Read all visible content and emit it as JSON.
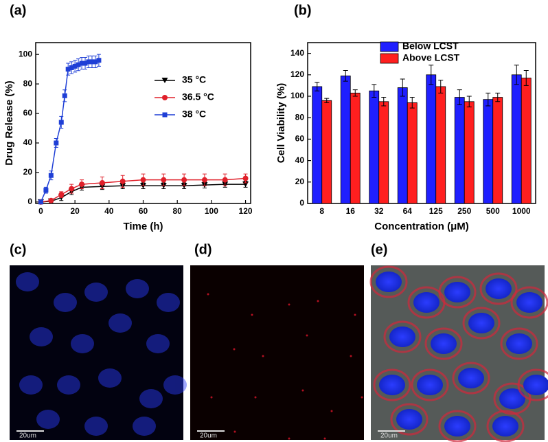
{
  "panel_labels": [
    "(a)",
    "(b)",
    "(c)",
    "(d)",
    "(e)"
  ],
  "scale_bars": [
    "20um",
    "20um",
    "20um"
  ],
  "chart_data": [
    {
      "type": "line",
      "x_label": "Time (h)",
      "y_label": "Drug Release (%)",
      "xlim": [
        -3,
        123
      ],
      "xticks": [
        0,
        20,
        40,
        60,
        80,
        100,
        120
      ],
      "ylim": [
        -1,
        108
      ],
      "yticks": [
        0,
        20,
        40,
        60,
        80,
        100
      ],
      "legend": "upper right",
      "series": [
        {
          "name": "35 °C",
          "color": "#000000",
          "marker": "triangle",
          "x": [
            0,
            6,
            12,
            18,
            24,
            36,
            48,
            60,
            72,
            84,
            96,
            108,
            120
          ],
          "values": [
            0,
            0.5,
            3,
            7,
            10,
            10.5,
            11,
            11,
            11,
            11,
            11.5,
            12,
            12
          ],
          "errors": [
            1,
            1,
            2,
            2,
            2,
            2,
            2,
            2,
            2,
            2,
            2,
            2,
            2
          ]
        },
        {
          "name": "36.5 °C",
          "color": "#e0202a",
          "marker": "circle",
          "x": [
            0,
            6,
            12,
            18,
            24,
            36,
            48,
            60,
            72,
            84,
            96,
            108,
            120
          ],
          "values": [
            0,
            1,
            5,
            9,
            12,
            13,
            14,
            15,
            15,
            15,
            15,
            15,
            16
          ],
          "errors": [
            1,
            1,
            2,
            3,
            3,
            4,
            4,
            4,
            4,
            4,
            4,
            4,
            3
          ]
        },
        {
          "name": "38 °C",
          "color": "#1f3fd6",
          "marker": "square",
          "x": [
            0,
            3,
            6,
            9,
            12,
            14,
            16,
            18,
            20,
            22,
            24,
            26,
            28,
            30,
            32,
            34
          ],
          "values": [
            0,
            8,
            18,
            40,
            54,
            72,
            90,
            91,
            92,
            93,
            94,
            94,
            95,
            95,
            95,
            96
          ],
          "errors": [
            1,
            2,
            3,
            3,
            4,
            4,
            4,
            4,
            4,
            4,
            4,
            4,
            4,
            4,
            4,
            4
          ]
        }
      ]
    },
    {
      "type": "bar",
      "x_label": "Concentration (μM)",
      "y_label": "Cell Viability (%)",
      "categories": [
        "8",
        "16",
        "32",
        "64",
        "125",
        "250",
        "500",
        "1000"
      ],
      "ylim": [
        0,
        150
      ],
      "yticks": [
        0,
        20,
        40,
        60,
        80,
        100,
        120,
        140
      ],
      "legend": "upper center",
      "series": [
        {
          "name": "Below LCST",
          "color": "#1f1fff",
          "values": [
            109,
            119,
            105,
            108,
            120,
            99,
            97,
            120
          ],
          "errors": [
            4,
            5,
            6,
            8,
            9,
            7,
            6,
            9
          ]
        },
        {
          "name": "Above LCST",
          "color": "#ff1f1f",
          "values": [
            96,
            103,
            95,
            94,
            109,
            95,
            99,
            117
          ],
          "errors": [
            2,
            3,
            4,
            5,
            6,
            5,
            4,
            7
          ]
        }
      ]
    }
  ]
}
